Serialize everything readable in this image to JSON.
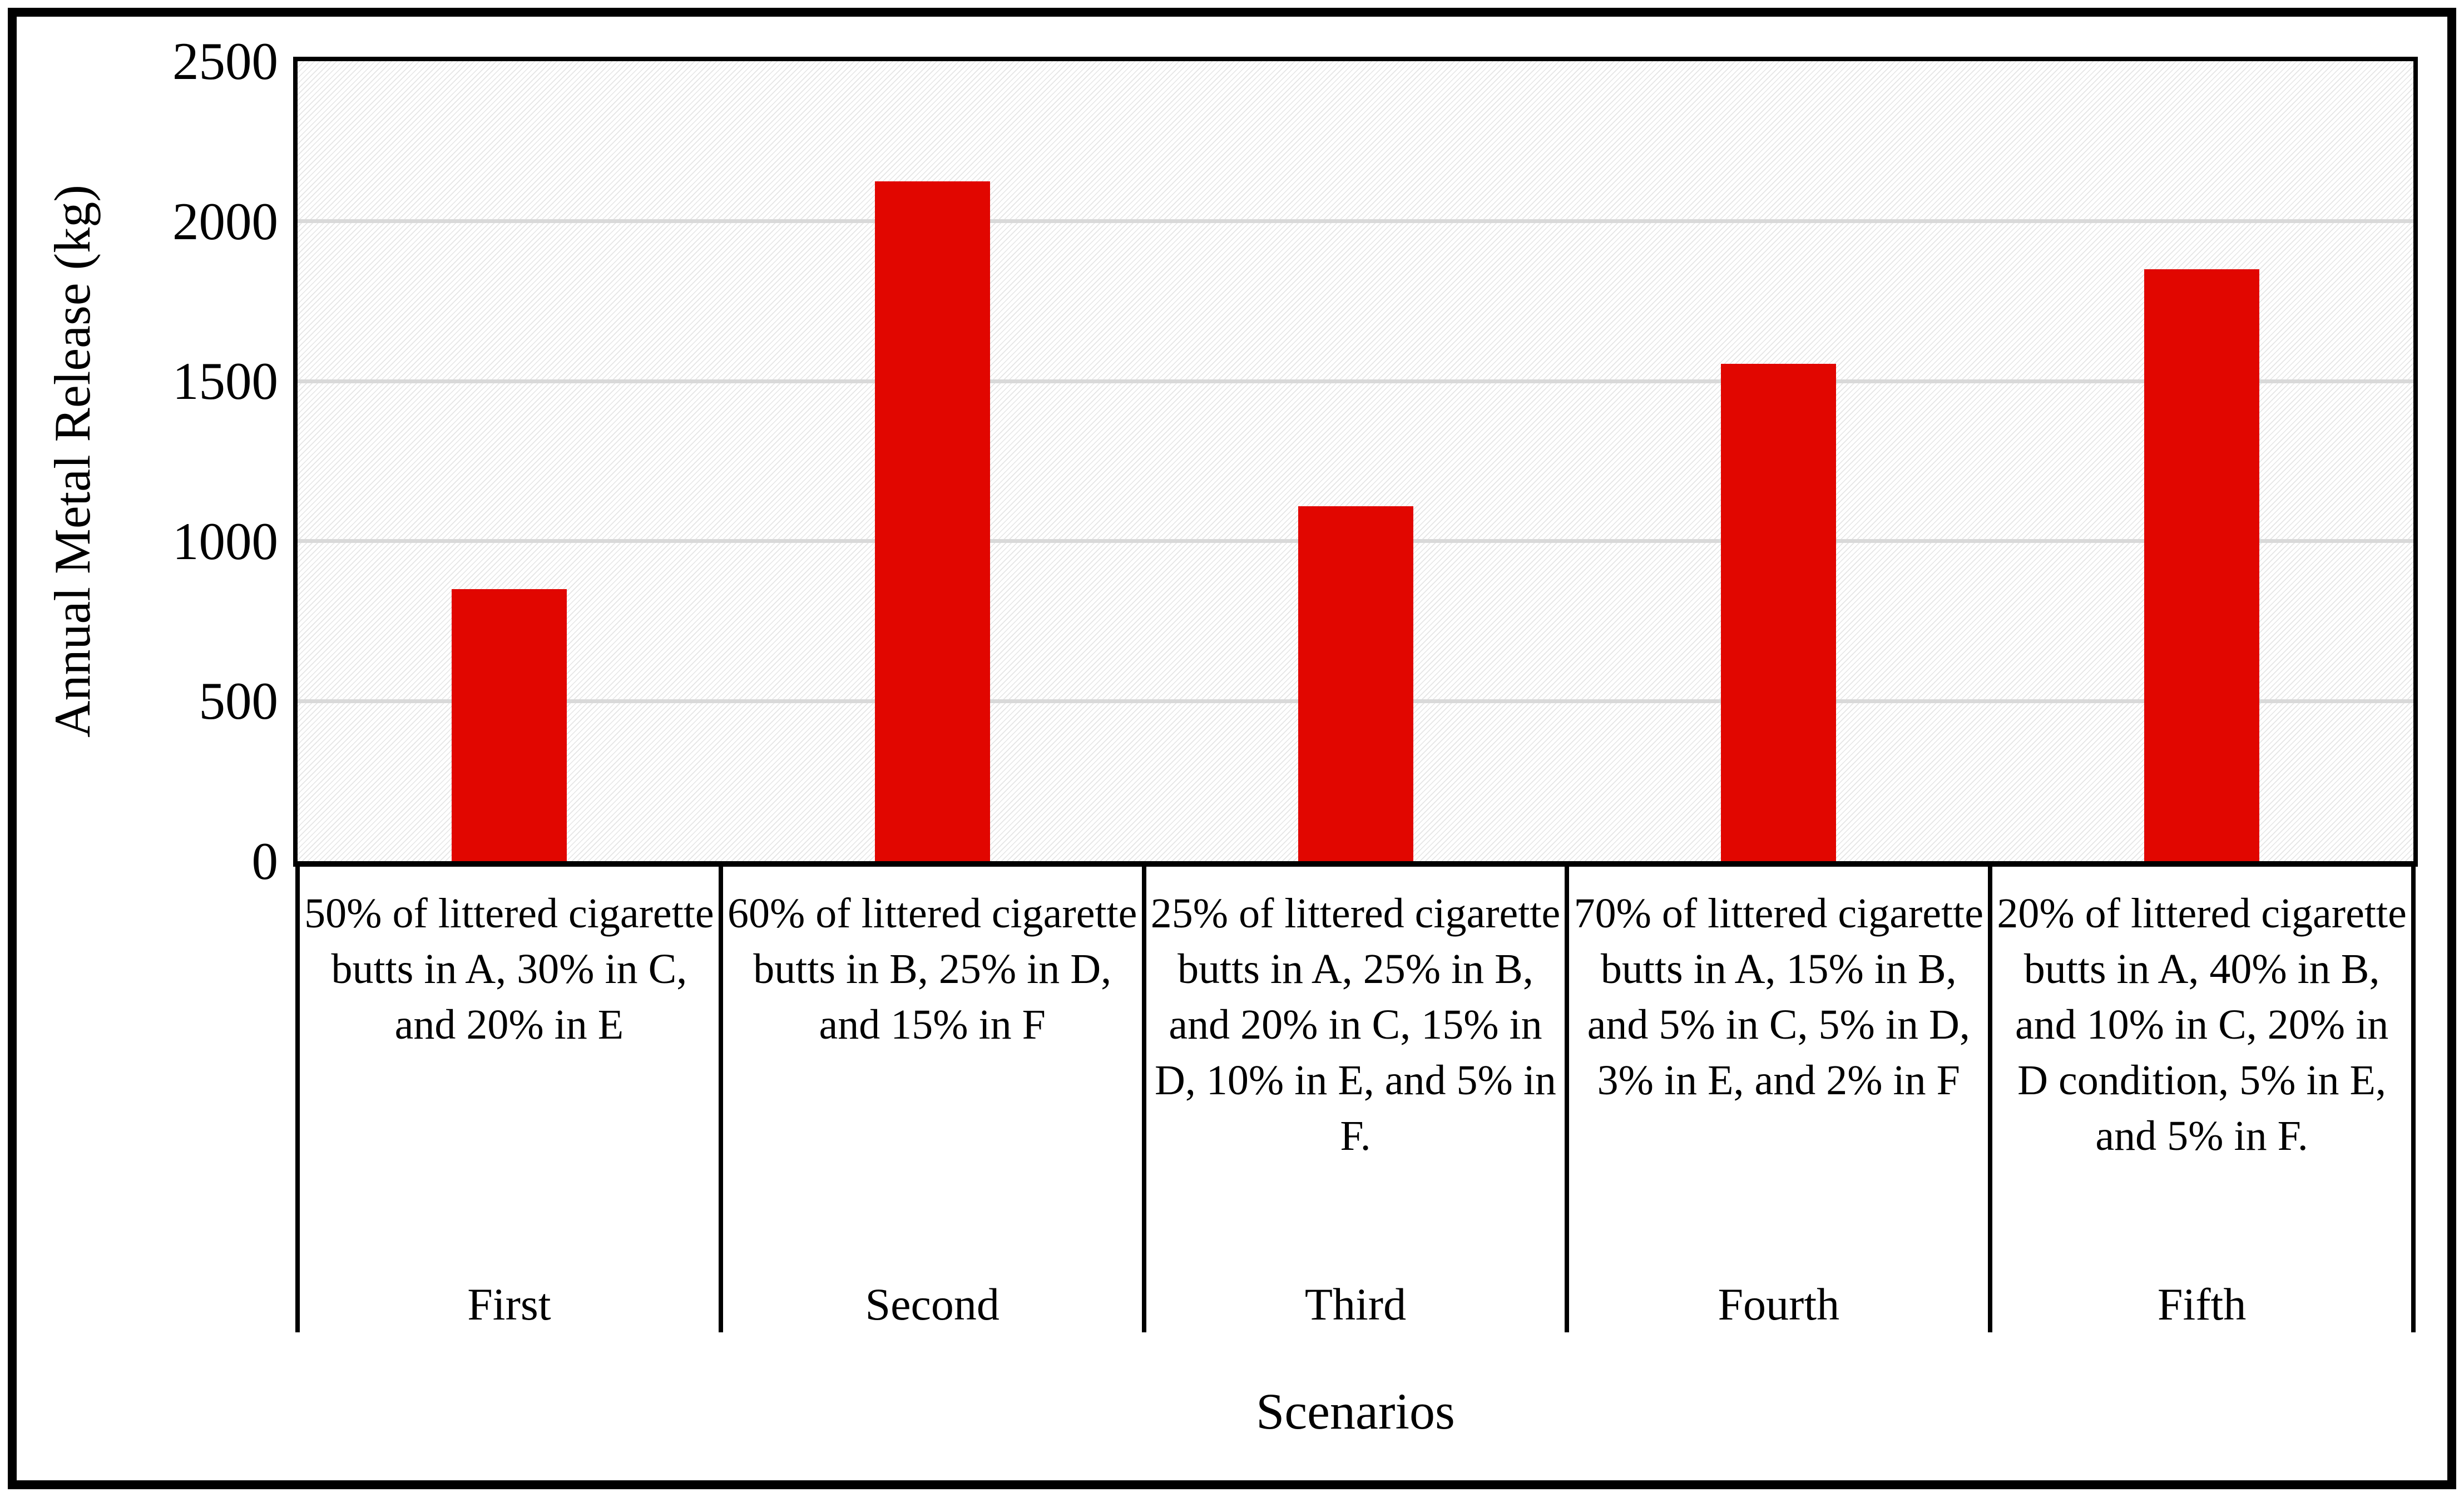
{
  "colors": {
    "bar": "#e10600",
    "gridline": "#d9d9d9",
    "axis": "#000000",
    "plot_hatch": "#e3e3e3",
    "background": "#ffffff"
  },
  "chart_data": {
    "type": "bar",
    "title": "",
    "xlabel": "Scenarios",
    "ylabel": "Annual Metal Release (kg)",
    "ylim": [
      0,
      2500
    ],
    "yticks": [
      0,
      500,
      1000,
      1500,
      2000,
      2500
    ],
    "grid": true,
    "legend_position": "none",
    "bar_color": "#e10600",
    "categories": [
      "50% of littered cigarette butts in A, 30% in C, and 20% in E",
      "60% of littered cigarette butts in B, 25% in D, and 15% in F",
      "25% of littered cigarette butts in A, 25% in B, and 20% in C, 15% in D, 10% in E, and 5% in F.",
      "70% of littered cigarette butts in A, 15% in B, and 5% in C, 5% in D, 3% in E, and 2% in F",
      "20% of littered cigarette butts in A, 40% in B, and 10% in C, 20% in D condition, 5% in E, and 5% in F."
    ],
    "category_labels": [
      "First",
      "Second",
      "Third",
      "Fourth",
      "Fifth"
    ],
    "series": [
      {
        "name": "Annual Metal Release",
        "values": [
          850,
          2125,
          1110,
          1555,
          1850
        ]
      }
    ],
    "values": [
      850,
      2125,
      1110,
      1555,
      1850
    ]
  }
}
